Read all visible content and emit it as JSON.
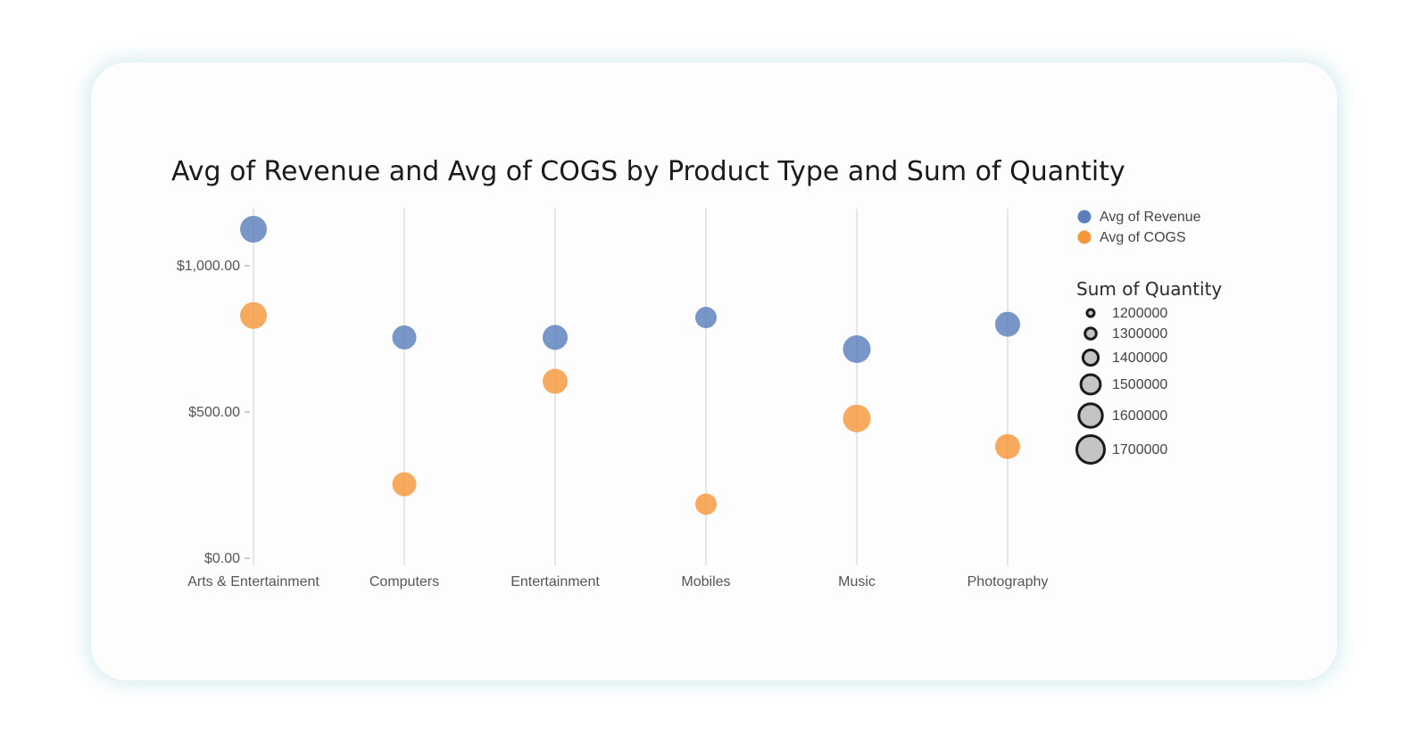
{
  "chart_data": {
    "type": "scatter",
    "title": "Avg of Revenue and Avg of COGS by Product Type and Sum of Quantity",
    "xlabel": "",
    "ylabel": "",
    "categories": [
      "Arts & Entertainment",
      "Computers",
      "Entertainment",
      "Mobiles",
      "Music",
      "Photography"
    ],
    "ylim": [
      0,
      1200
    ],
    "y_ticks": [
      {
        "value": 0,
        "label": "$0.00"
      },
      {
        "value": 500,
        "label": "$500.00"
      },
      {
        "value": 1000,
        "label": "$1,000.00"
      }
    ],
    "grid": "vertical",
    "series": [
      {
        "name": "Avg of Revenue",
        "color": "#5b7fbd",
        "values": [
          1125,
          755,
          755,
          823,
          715,
          800
        ]
      },
      {
        "name": "Avg of COGS",
        "color": "#f5973a",
        "values": [
          830,
          253,
          605,
          185,
          478,
          382
        ]
      }
    ],
    "size_by": {
      "name": "Sum of Quantity",
      "values": [
        1600000,
        1450000,
        1500000,
        1300000,
        1650000,
        1500000
      ],
      "legend_values": [
        1200000,
        1300000,
        1400000,
        1500000,
        1600000,
        1700000
      ]
    },
    "legend_position": "right"
  }
}
